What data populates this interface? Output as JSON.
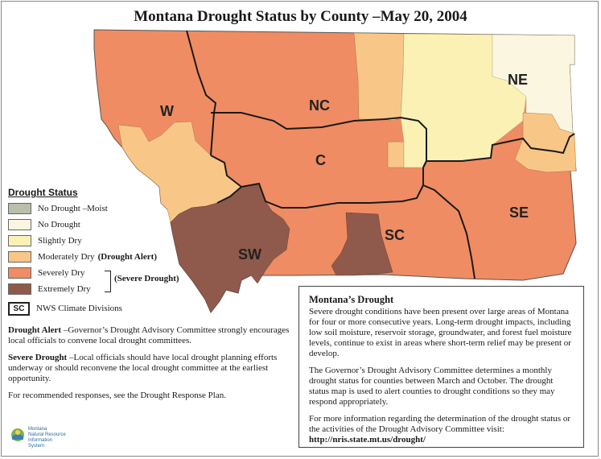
{
  "title": "Montana Drought Status by County –May 20, 2004",
  "colors": {
    "no_drought_moist": "#b9bfa8",
    "no_drought": "#fbf6e0",
    "slightly_dry": "#fbf1b4",
    "moderately_dry": "#f8c787",
    "severely_dry": "#f08c63",
    "extremely_dry": "#8f5a4b"
  },
  "regions": {
    "w": "W",
    "nc": "NC",
    "ne": "NE",
    "c": "C",
    "sw": "SW",
    "sc": "SC",
    "se": "SE"
  },
  "legend": {
    "title": "Drought Status",
    "items": [
      {
        "label": "No Drought –Moist",
        "color": "#b9bfa8"
      },
      {
        "label": "No Drought",
        "color": "#fbf6e0"
      },
      {
        "label": "Slightly Dry",
        "color": "#fbf1b4"
      },
      {
        "label": "Moderately Dry",
        "extra": "(Drought Alert)",
        "color": "#f8c787"
      },
      {
        "label": "Severely Dry",
        "color": "#f08c63"
      },
      {
        "label": "Extremely Dry",
        "color": "#8f5a4b"
      }
    ],
    "severe_tag": "(Severe Drought)",
    "sc_box": "SC",
    "climate_divisions": "NWS Climate Divisions"
  },
  "notes": {
    "alert_term": "Drought Alert",
    "alert_text": " –Governor’s Drought Advisory Committee strongly encourages local officials to convene local drought committees.",
    "severe_term": "Severe Drought",
    "severe_text": " –Local officials should have local drought planning efforts underway or should reconvene the local drought committee at the earliest opportunity.",
    "recommended": "For recommended responses, see the Drought Response Plan."
  },
  "logo": {
    "line1": "Montana",
    "line2": "Natural Resource",
    "line3": "Information",
    "line4": "System"
  },
  "infobox": {
    "heading": "Montana’s Drought",
    "para1": "Severe drought conditions have been present over large areas of Montana for four or more consecutive years. Long-term drought impacts, including low soil moisture, reservoir storage, groundwater, and forest fuel moisture levels, continue to exist in areas where short-term relief may be present or develop.",
    "para2": "The Governor’s Drought Advisory Committee determines a monthly drought status for counties between March and October. The drought status map is used to alert counties to drought conditions so they may respond appropriately.",
    "para3": "For more information regarding the determination of the drought status or the activities of the Drought Advisory Committee visit:",
    "url": "http://nris.state.mt.us/drought/"
  }
}
